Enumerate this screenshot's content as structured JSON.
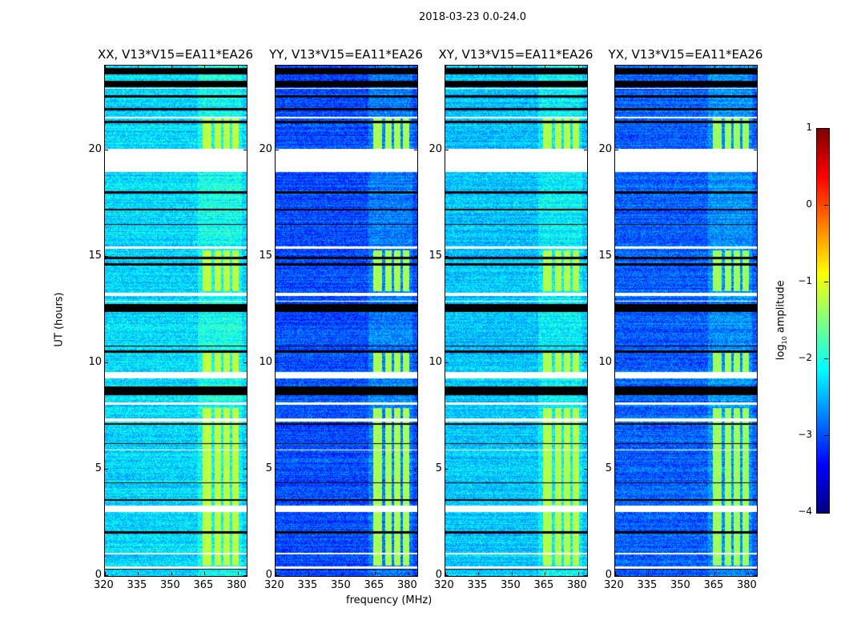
{
  "chart_data": {
    "type": "heatmap",
    "title": "2018-03-23 0.0-24.0",
    "xlabel": "frequency (MHz)",
    "ylabel": "UT (hours)",
    "colorbar_label": "log10 amplitude",
    "colorbar_label_parts": {
      "pre": "log",
      "sub": "10",
      "post": " amplitude"
    },
    "colormap": "jet",
    "clim": [
      -4,
      1
    ],
    "colorbar_ticks": [
      "1",
      "0",
      "−1",
      "−2",
      "−3",
      "−4"
    ],
    "colorbar_tick_values": [
      1,
      0,
      -1,
      -2,
      -3,
      -4
    ],
    "xlim": [
      320,
      384
    ],
    "ylim": [
      0,
      24
    ],
    "x_ticks": [
      320,
      335,
      350,
      365,
      380
    ],
    "y_ticks": [
      0,
      5,
      10,
      15,
      20
    ],
    "panels": [
      {
        "title": "XX, V13*V15=EA11*EA26",
        "base": -2.3,
        "band": -1.2
      },
      {
        "title": "YY, V13*V15=EA11*EA26",
        "base": -3.0,
        "band": -1.3
      },
      {
        "title": "XY, V13*V15=EA11*EA26",
        "base": -2.4,
        "band": -1.25
      },
      {
        "title": "YX, V13*V15=EA11*EA26",
        "base": -2.9,
        "band": -1.35
      }
    ],
    "flagged_hours": [
      [
        19.0,
        20.1
      ],
      [
        3.0,
        3.3
      ],
      [
        7.25,
        7.4
      ],
      [
        9.3,
        9.6
      ],
      [
        13.15,
        13.3
      ],
      [
        15.4,
        15.5
      ],
      [
        1.0,
        1.1
      ],
      [
        0.35,
        0.45
      ],
      [
        5.9,
        5.95
      ],
      [
        12.9,
        12.95
      ],
      [
        8.05,
        8.15
      ],
      [
        21.5,
        21.6
      ],
      [
        22.9,
        22.95
      ]
    ],
    "dark_hours": [
      [
        0.3,
        0.45
      ],
      [
        2.0,
        2.1
      ],
      [
        3.55,
        3.6
      ],
      [
        4.35,
        4.4
      ],
      [
        6.2,
        6.25
      ],
      [
        7.1,
        7.2
      ],
      [
        8.5,
        8.9
      ],
      [
        10.5,
        10.6
      ],
      [
        10.8,
        10.85
      ],
      [
        12.4,
        12.8
      ],
      [
        14.6,
        14.7
      ],
      [
        14.9,
        15.0
      ],
      [
        16.5,
        16.55
      ],
      [
        17.2,
        17.25
      ],
      [
        18.0,
        18.1
      ],
      [
        21.3,
        21.4
      ],
      [
        21.9,
        22.0
      ],
      [
        22.5,
        22.6
      ],
      [
        23.0,
        23.3
      ],
      [
        23.6,
        23.9
      ]
    ],
    "rfi_bands_mhz": [
      [
        364,
        368
      ],
      [
        369.5,
        372.5
      ],
      [
        373.5,
        376.5
      ],
      [
        377.5,
        380.5
      ]
    ],
    "rfi_active_hours": [
      [
        0.5,
        7.9
      ],
      [
        9.6,
        10.6
      ],
      [
        13.4,
        15.3
      ],
      [
        20.1,
        21.6
      ]
    ]
  }
}
